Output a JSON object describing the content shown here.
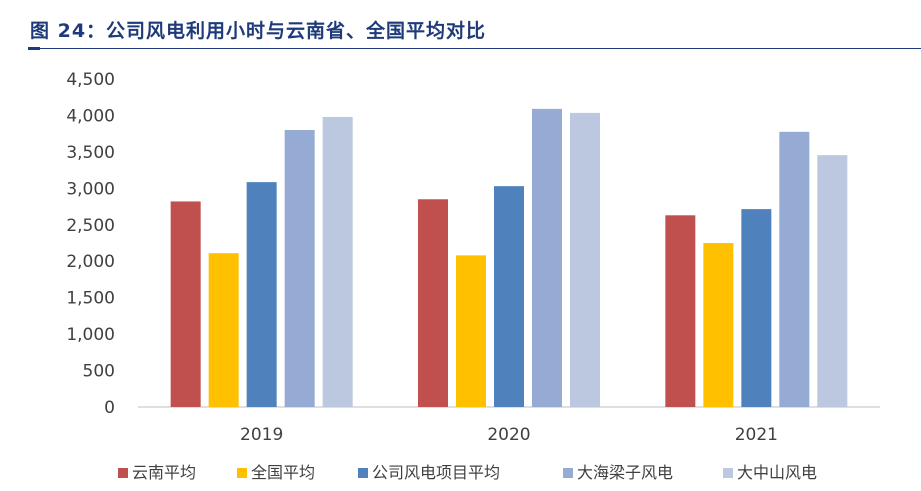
{
  "chart_data": {
    "type": "bar",
    "title": "图 24：公司风电利用小时与云南省、全国平均对比",
    "categories": [
      "2019",
      "2020",
      "2021"
    ],
    "ylim": [
      0,
      4500
    ],
    "yticks": [
      "0",
      "500",
      "1,000",
      "1,500",
      "2,000",
      "2,500",
      "3,000",
      "3,500",
      "4,000",
      "4,500"
    ],
    "legend_position": "bottom",
    "series": [
      {
        "name": "云南平均",
        "color": "#c0504d",
        "values": [
          2820,
          2850,
          2630
        ]
      },
      {
        "name": "全国平均",
        "color": "#ffc000",
        "values": [
          2110,
          2080,
          2250
        ]
      },
      {
        "name": "公司风电项目平均",
        "color": "#4f81bd",
        "values": [
          3085,
          3030,
          2715
        ]
      },
      {
        "name": "大海梁子风电",
        "color": "#95abd3",
        "values": [
          3800,
          4090,
          3775
        ]
      },
      {
        "name": "大中山风电",
        "color": "#bcc8e0",
        "values": [
          3980,
          4035,
          3455
        ]
      }
    ]
  }
}
